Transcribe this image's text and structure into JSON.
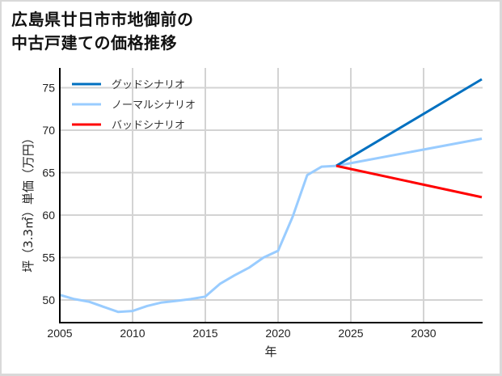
{
  "title_line1": "広島県廿日市市地御前の",
  "title_line2": "中古戸建ての価格推移",
  "chart_data": {
    "type": "line",
    "title": "広島県廿日市市地御前の中古戸建ての価格推移",
    "xlabel": "年",
    "ylabel": "坪（3.3㎡）単価（万円）",
    "xlim": [
      2005,
      2034
    ],
    "ylim": [
      47.5,
      77
    ],
    "xticks": [
      2005,
      2010,
      2015,
      2020,
      2025,
      2030
    ],
    "yticks": [
      50,
      55,
      60,
      65,
      70,
      75
    ],
    "grid": true,
    "legend_position": "upper left",
    "series": [
      {
        "name": "グッドシナリオ",
        "color": "#0070c0",
        "x": [
          2024,
          2034
        ],
        "values": [
          65.8,
          76.0
        ]
      },
      {
        "name": "ノーマルシナリオ",
        "color": "#99ccff",
        "x": [
          2005,
          2006,
          2007,
          2008,
          2009,
          2010,
          2011,
          2012,
          2013,
          2014,
          2015,
          2016,
          2017,
          2018,
          2019,
          2020,
          2021,
          2022,
          2023,
          2024,
          2034
        ],
        "values": [
          50.6,
          50.1,
          49.8,
          49.2,
          48.6,
          48.7,
          49.3,
          49.7,
          49.9,
          50.1,
          50.4,
          51.9,
          52.9,
          53.8,
          55.0,
          55.8,
          59.8,
          64.7,
          65.7,
          65.8,
          69.0
        ]
      },
      {
        "name": "バッドシナリオ",
        "color": "#ff0000",
        "x": [
          2024,
          2034
        ],
        "values": [
          65.8,
          62.1
        ]
      }
    ]
  }
}
